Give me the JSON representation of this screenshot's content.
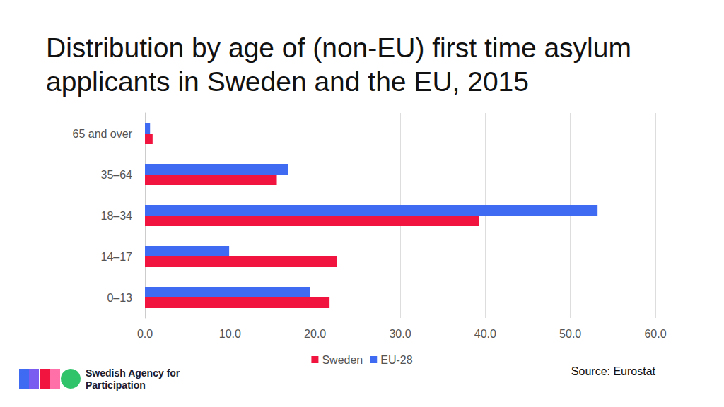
{
  "chart_data": {
    "type": "bar",
    "title": "Distribution by age of (non-EU) first time asylum applicants in Sweden and the EU, 2015",
    "orientation": "horizontal",
    "categories": [
      "0–13",
      "14–17",
      "18–34",
      "35–64",
      "65 and over"
    ],
    "series": [
      {
        "name": "Sweden",
        "color": "#f0143f",
        "values": [
          21.7,
          22.6,
          39.3,
          15.5,
          0.9
        ]
      },
      {
        "name": "EU-28",
        "color": "#3f6bf2",
        "values": [
          19.4,
          9.9,
          53.2,
          16.8,
          0.6
        ]
      }
    ],
    "xlim": [
      0,
      60
    ],
    "xticks": [
      {
        "value": 0,
        "label": "0.0"
      },
      {
        "value": 10,
        "label": "10.0"
      },
      {
        "value": 20,
        "label": "20.0"
      },
      {
        "value": 30,
        "label": "30.0"
      },
      {
        "value": 40,
        "label": "40.0"
      },
      {
        "value": 50,
        "label": "50.0"
      },
      {
        "value": 60,
        "label": "60.0"
      }
    ],
    "grid": true,
    "legend": "bottom",
    "source": "Source: Eurostat",
    "logo_text": "Swedish Agency for Participation"
  }
}
